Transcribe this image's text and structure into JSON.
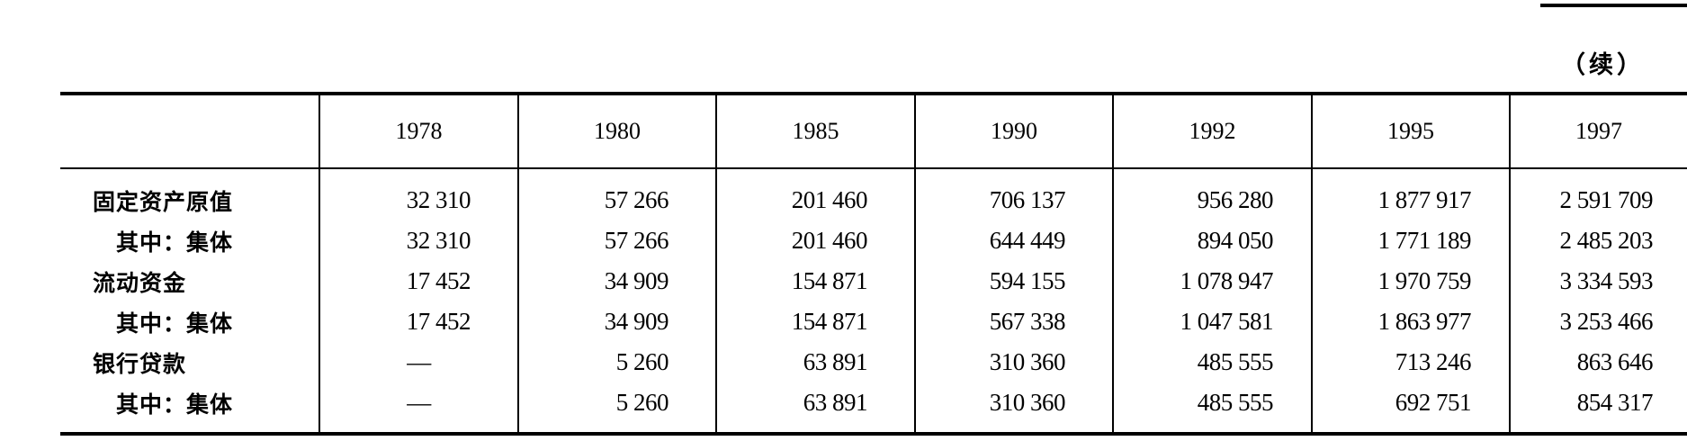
{
  "continued_label": "（续）",
  "table": {
    "columns": [
      "",
      "1978",
      "1980",
      "1985",
      "1990",
      "1992",
      "1995",
      "1997"
    ],
    "rows": [
      {
        "label": "固定资产原值",
        "sub": false,
        "values": [
          "32 310",
          "57 266",
          "201 460",
          "706 137",
          "956 280",
          "1 877 917",
          "2 591 709"
        ]
      },
      {
        "label": "其中：集体",
        "sub": true,
        "values": [
          "32 310",
          "57 266",
          "201 460",
          "644 449",
          "894 050",
          "1 771 189",
          "2 485 203"
        ]
      },
      {
        "label": "流动资金",
        "sub": false,
        "values": [
          "17 452",
          "34 909",
          "154 871",
          "594 155",
          "1 078 947",
          "1 970 759",
          "3 334 593"
        ]
      },
      {
        "label": "其中：集体",
        "sub": true,
        "values": [
          "17 452",
          "34 909",
          "154 871",
          "567 338",
          "1 047 581",
          "1 863 977",
          "3 253 466"
        ]
      },
      {
        "label": "银行贷款",
        "sub": false,
        "values": [
          "—",
          "5 260",
          "63 891",
          "310 360",
          "485 555",
          "713 246",
          "863 646"
        ]
      },
      {
        "label": "其中：集体",
        "sub": true,
        "values": [
          "—",
          "5 260",
          "63 891",
          "310 360",
          "485 555",
          "692 751",
          "854 317"
        ]
      }
    ]
  }
}
